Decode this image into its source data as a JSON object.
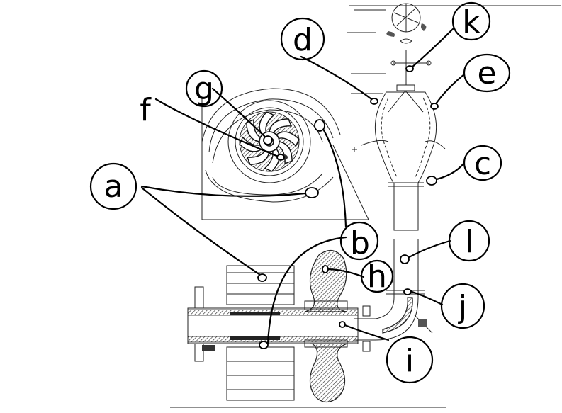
{
  "labels": {
    "a": "a",
    "b": "b",
    "c": "c",
    "d": "d",
    "e": "e",
    "f": "f",
    "g": "g",
    "h": "h",
    "i": "i",
    "j": "j",
    "k": "k",
    "l": "l"
  }
}
